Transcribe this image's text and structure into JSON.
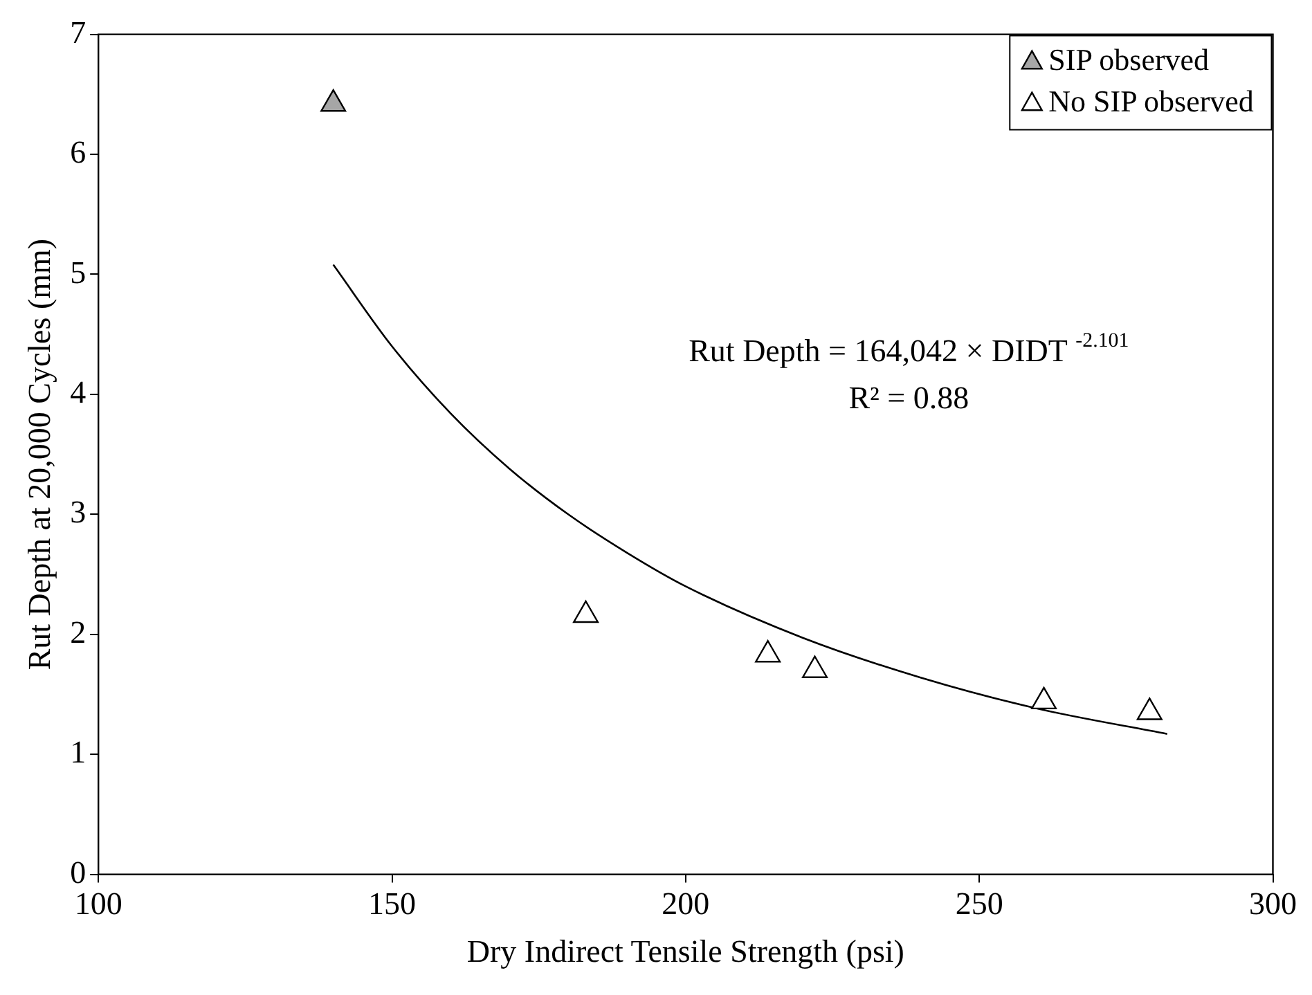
{
  "chart_data": {
    "type": "scatter",
    "xlabel": "Dry Indirect Tensile Strength (psi)",
    "ylabel": "Rut Depth at 20,000 Cycles (mm)",
    "xlim": [
      100,
      300
    ],
    "xticks": [
      100,
      150,
      200,
      250,
      300
    ],
    "ylim": [
      0,
      7
    ],
    "yticks": [
      0,
      1,
      2,
      3,
      4,
      5,
      6,
      7
    ],
    "grid": false,
    "legend": "top right",
    "marker": "triangle",
    "series": [
      {
        "name": "SIP observed",
        "color": "#a6a6a6",
        "x": [
          140
        ],
        "values": [
          6.42
        ]
      },
      {
        "name": "No SIP observed",
        "color": "#ffffff",
        "x": [
          183,
          214,
          222,
          261,
          279
        ],
        "values": [
          2.16,
          1.83,
          1.7,
          1.44,
          1.35
        ]
      },
      {
        "type": "line",
        "marker": "none",
        "color": "#000000",
        "x": [
          140,
          150,
          160,
          170,
          180,
          190,
          200,
          220,
          240,
          260,
          282
        ],
        "values": [
          5.08,
          4.4,
          3.84,
          3.38,
          3.0,
          2.68,
          2.4,
          1.97,
          1.64,
          1.38,
          1.17
        ]
      }
    ],
    "annotations": [
      "Rut Depth = 164,042 × DIDT $^{-2.101}$",
      "R² = 0.88"
    ]
  }
}
